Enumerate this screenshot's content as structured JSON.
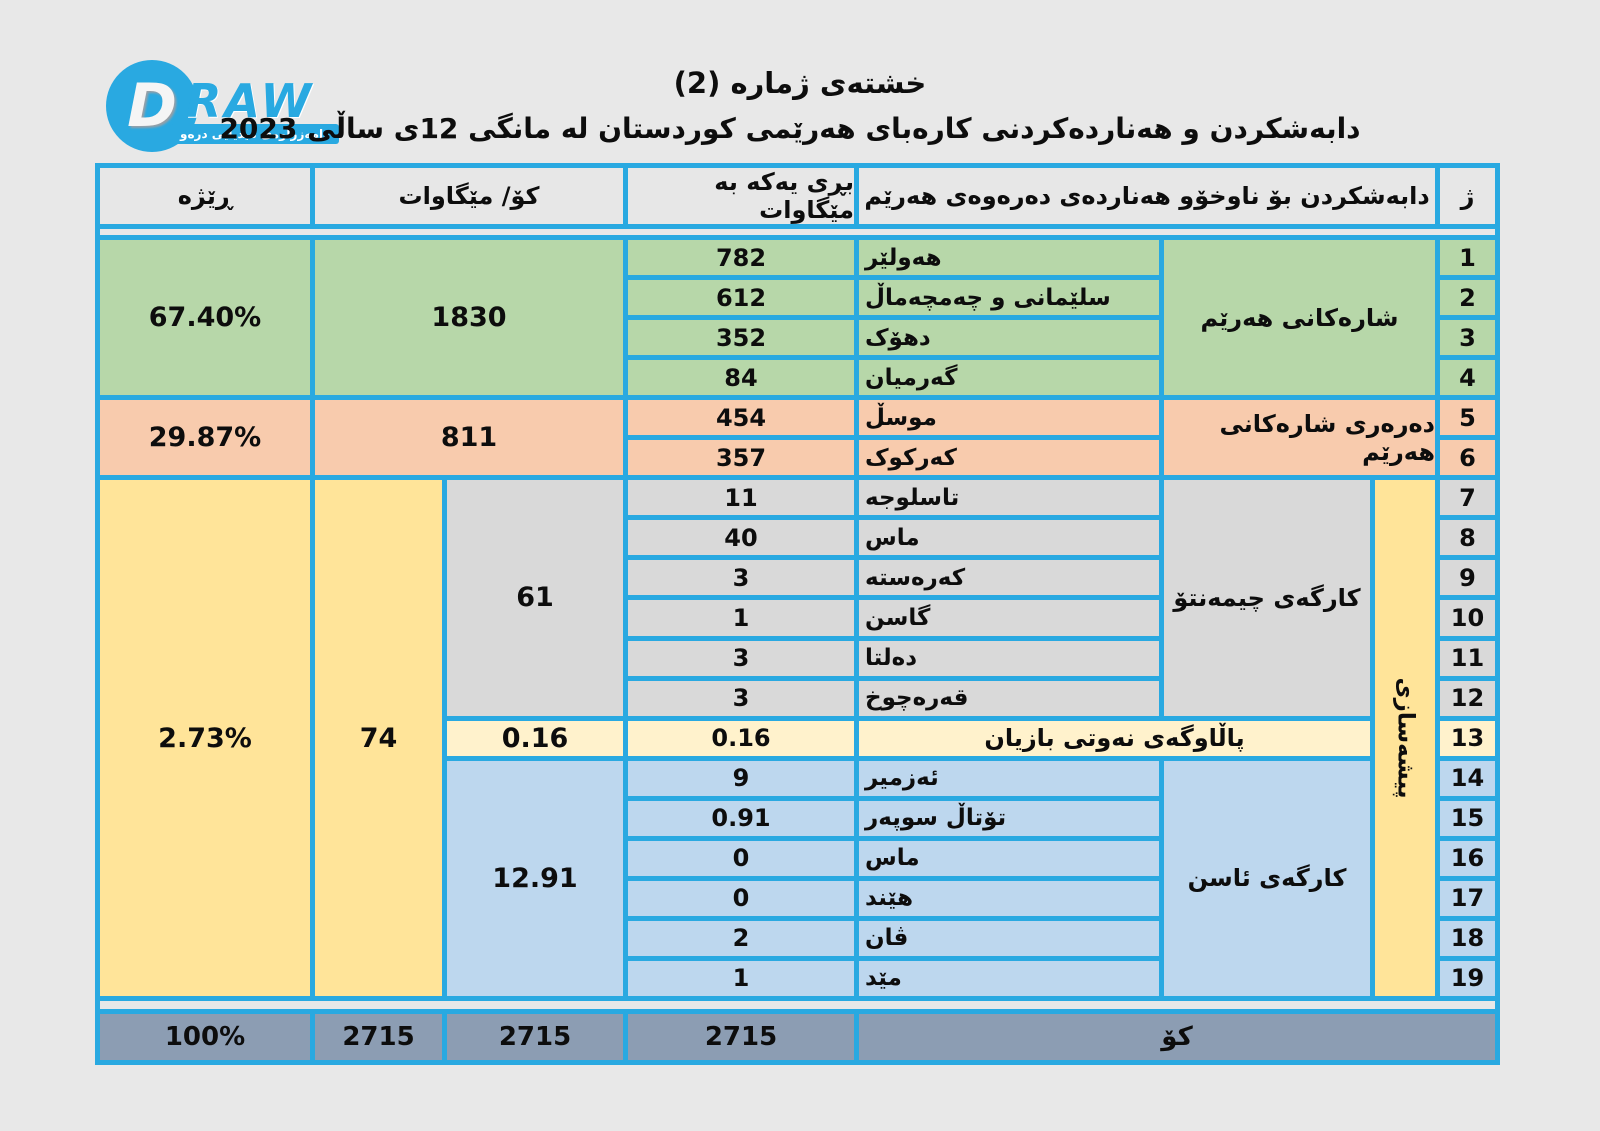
{
  "colors": {
    "border": "#29A9E1",
    "green": "#B7D7A9",
    "orange": "#F8CBAD",
    "yellow": "#FFE499",
    "gray": "#D9D9D9",
    "cream": "#FFF2CC",
    "blue": "#BDD7EE",
    "total_row": "#8C9DB3",
    "page_bg": "#E8E8E8"
  },
  "logo": {
    "letter": "D",
    "wordmark": "RAW",
    "banner": "دامەزراوەی میدیایی درەو"
  },
  "title": "خشتەی ژماره (2)",
  "subtitle": "دابەشکردن و هەناردەکردنی کارەبای هەرێمی کوردستان له مانگی 12ی ساڵی 2023",
  "table": {
    "header": {
      "no": "ژ",
      "category": "دابەشکردن بۆ ناوخۆو هەناردەی دەرەوەی هەرێم",
      "unit": "بڕی یەکە بە مێگاوات",
      "total": "کۆ/ مێگاوات",
      "ratio": "ڕێژە"
    },
    "region_cities": {
      "label": "شارەکانی هەرێم",
      "total": "1830",
      "ratio": "67.40%",
      "rows": [
        {
          "no": "1",
          "name": "هەولێر",
          "unit": "782"
        },
        {
          "no": "2",
          "name": "سلێمانی و چەمچەماڵ",
          "unit": "612"
        },
        {
          "no": "3",
          "name": "دهۆک",
          "unit": "352"
        },
        {
          "no": "4",
          "name": "گەرمیان",
          "unit": "84"
        }
      ]
    },
    "outside_region": {
      "label": "دەرەری شارەکانی هەرێم",
      "total": "811",
      "ratio": "29.87%",
      "rows": [
        {
          "no": "5",
          "name": "موسڵ",
          "unit": "454"
        },
        {
          "no": "6",
          "name": "کەرکوک",
          "unit": "357"
        }
      ]
    },
    "industry": {
      "label": "پیشەسازی",
      "total": "74",
      "ratio": "2.73%",
      "cement": {
        "label": "کارگەی چیمەنتۆ",
        "subtotal": "61",
        "rows": [
          {
            "no": "7",
            "name": "تاسلوجە",
            "unit": "11"
          },
          {
            "no": "8",
            "name": "ماس",
            "unit": "40"
          },
          {
            "no": "9",
            "name": "کەرەستە",
            "unit": "3"
          },
          {
            "no": "10",
            "name": "گاسن",
            "unit": "1"
          },
          {
            "no": "11",
            "name": "دەلتا",
            "unit": "3"
          },
          {
            "no": "12",
            "name": "قەرەچوخ",
            "unit": "3"
          }
        ]
      },
      "refinery": {
        "no": "13",
        "name": "پاڵاوگەی نەوتی بازیان",
        "subtotal": "0.16",
        "unit": "0.16"
      },
      "iron": {
        "label": "کارگەی ئاسن",
        "subtotal": "12.91",
        "rows": [
          {
            "no": "14",
            "name": "ئەزمیر",
            "unit": "9"
          },
          {
            "no": "15",
            "name": "تۆتاڵ سوپەر",
            "unit": "0.91"
          },
          {
            "no": "16",
            "name": "ماس",
            "unit": "0"
          },
          {
            "no": "17",
            "name": "هێند",
            "unit": "0"
          },
          {
            "no": "18",
            "name": "ڤان",
            "unit": "2"
          },
          {
            "no": "19",
            "name": "مێد",
            "unit": "1"
          }
        ]
      }
    },
    "grand_total": {
      "label": "کۆ",
      "unit": "2715",
      "subtotal": "2715",
      "total": "2715",
      "ratio": "100%"
    }
  }
}
